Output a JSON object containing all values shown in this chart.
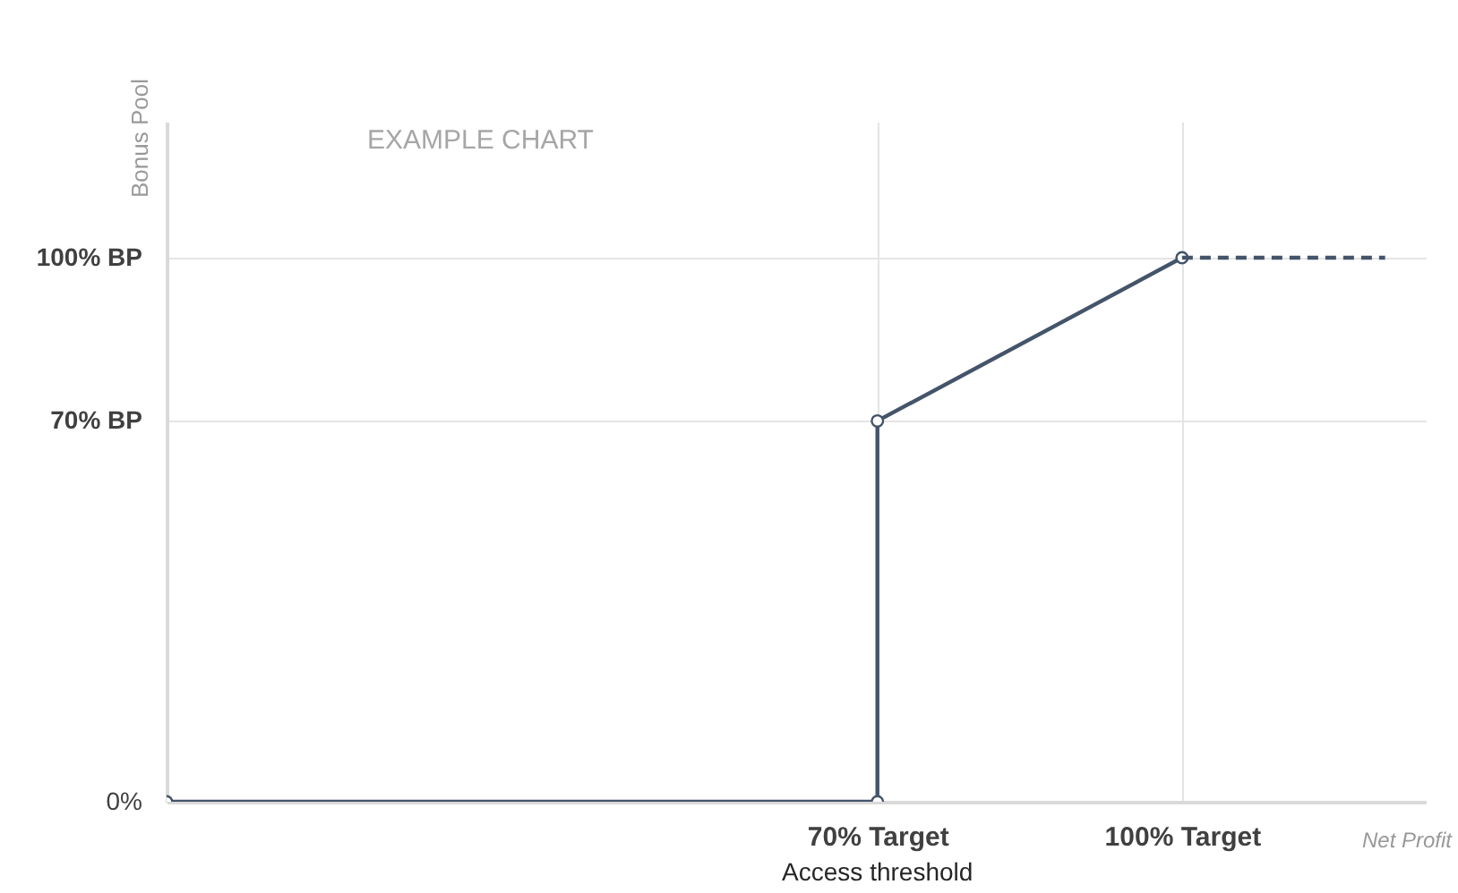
{
  "chart_data": {
    "type": "line",
    "title": "EXAMPLE CHART",
    "xlabel": "Net Profit",
    "ylabel": "Bonus Pool",
    "xlim": [
      0,
      124
    ],
    "ylim": [
      0,
      125
    ],
    "xticks": [
      {
        "value": 70,
        "label": "70% Target"
      },
      {
        "value": 100,
        "label": "100% Target"
      }
    ],
    "yticks": [
      {
        "value": 0,
        "label": "0%"
      },
      {
        "value": 70,
        "label": "70% BP"
      },
      {
        "value": 100,
        "label": "100% BP"
      }
    ],
    "grid": true,
    "series": [
      {
        "color": "#44546a",
        "x": [
          0,
          70,
          70,
          100
        ],
        "values": [
          0,
          0,
          70,
          100
        ],
        "marker": "circle",
        "line_style": "solid"
      },
      {
        "color": "#44546a",
        "x": [
          100,
          120
        ],
        "values": [
          100,
          100
        ],
        "marker": "none",
        "line_style": "dashed"
      }
    ],
    "annotations": [
      "Access threshold"
    ]
  }
}
